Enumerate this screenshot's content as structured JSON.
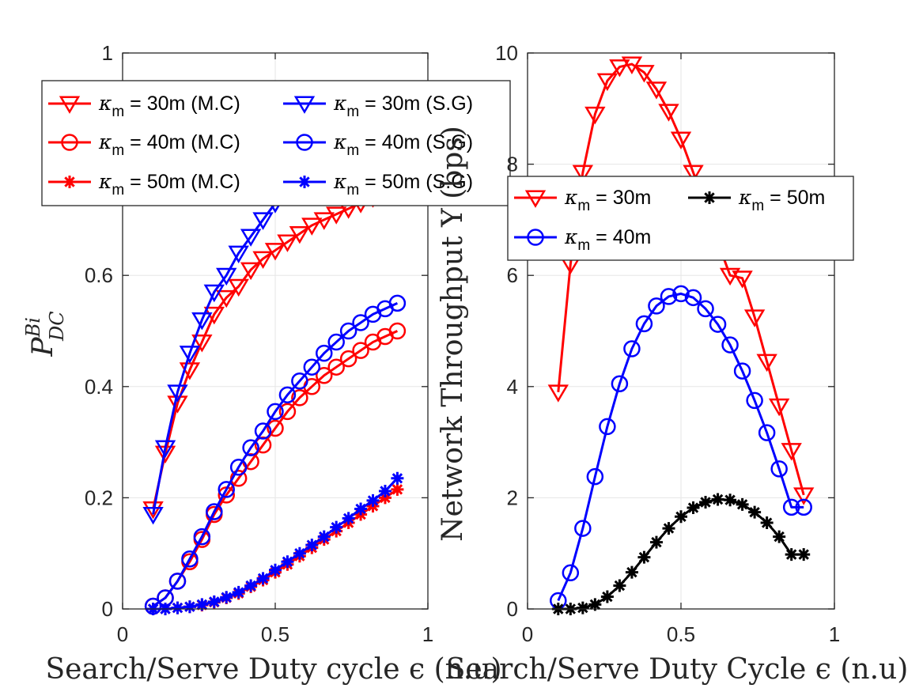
{
  "chart_data": [
    {
      "type": "line",
      "xlabel": "Search/Serve Duty cycle ϵ (n.u)",
      "ylabel": "P",
      "ylabel_sup": "Bi",
      "ylabel_sub": "DC",
      "xlim": [
        0,
        1
      ],
      "ylim": [
        0,
        1
      ],
      "xticks": [
        0,
        0.5,
        1
      ],
      "xtick_labels": [
        "0",
        "0.5",
        "1"
      ],
      "yticks": [
        0,
        0.2,
        0.4,
        0.6,
        0.8,
        1
      ],
      "ytick_labels": [
        "0",
        "0.2",
        "0.4",
        "0.6",
        "0.8",
        "1"
      ],
      "grid": true,
      "legend": {
        "placement": "top",
        "columns": 2
      },
      "x": [
        0.1,
        0.14,
        0.18,
        0.22,
        0.26,
        0.3,
        0.34,
        0.38,
        0.42,
        0.46,
        0.5,
        0.54,
        0.58,
        0.62,
        0.66,
        0.7,
        0.74,
        0.78,
        0.82,
        0.86,
        0.9
      ],
      "series": [
        {
          "name": "κm = 30m (M.C)",
          "name_main": "κ",
          "name_sub": "m",
          "name_rest": " = 30m (M.C)",
          "color": "#ff0000",
          "marker": "triangle-down",
          "values": [
            0.18,
            0.28,
            0.37,
            0.43,
            0.48,
            0.53,
            0.56,
            0.58,
            0.61,
            0.63,
            0.645,
            0.66,
            0.675,
            0.69,
            0.7,
            0.71,
            0.72,
            0.73,
            0.74,
            0.75,
            0.76
          ]
        },
        {
          "name": "κm = 40m (M.C)",
          "name_main": "κ",
          "name_sub": "m",
          "name_rest": " = 40m (M.C)",
          "color": "#ff0000",
          "marker": "circle",
          "values": [
            0.005,
            0.02,
            0.05,
            0.085,
            0.125,
            0.17,
            0.205,
            0.235,
            0.265,
            0.295,
            0.325,
            0.355,
            0.38,
            0.4,
            0.42,
            0.435,
            0.45,
            0.465,
            0.48,
            0.49,
            0.5
          ]
        },
        {
          "name": "κm = 50m (M.C)",
          "name_main": "κ",
          "name_sub": "m",
          "name_rest": " = 50m (M.C)",
          "color": "#ff0000",
          "marker": "asterisk",
          "values": [
            0.0,
            0.0,
            0.002,
            0.004,
            0.007,
            0.012,
            0.02,
            0.028,
            0.04,
            0.052,
            0.066,
            0.08,
            0.095,
            0.11,
            0.125,
            0.14,
            0.155,
            0.17,
            0.185,
            0.2,
            0.215
          ]
        },
        {
          "name": "κm = 30m (S.G)",
          "name_main": "κ",
          "name_sub": "m",
          "name_rest": " = 30m (S.G)",
          "color": "#0000ff",
          "marker": "triangle-down",
          "values": [
            0.17,
            0.29,
            0.39,
            0.46,
            0.52,
            0.57,
            0.6,
            0.64,
            0.67,
            0.7,
            0.73,
            0.75,
            0.77,
            0.79,
            0.81,
            0.82,
            0.83,
            0.84,
            0.85,
            0.86,
            0.87
          ]
        },
        {
          "name": "κm = 40m (S.G)",
          "name_main": "κ",
          "name_sub": "m",
          "name_rest": " = 40m (S.G)",
          "color": "#0000ff",
          "marker": "circle",
          "values": [
            0.005,
            0.02,
            0.05,
            0.09,
            0.13,
            0.175,
            0.215,
            0.255,
            0.29,
            0.32,
            0.355,
            0.385,
            0.41,
            0.435,
            0.46,
            0.48,
            0.5,
            0.515,
            0.53,
            0.54,
            0.55
          ]
        },
        {
          "name": "κm = 50m (S.G)",
          "name_main": "κ",
          "name_sub": "m",
          "name_rest": " = 50m (S.G)",
          "color": "#0000ff",
          "marker": "asterisk",
          "values": [
            0.0,
            0.0,
            0.002,
            0.004,
            0.008,
            0.013,
            0.021,
            0.03,
            0.042,
            0.055,
            0.07,
            0.085,
            0.1,
            0.115,
            0.13,
            0.147,
            0.163,
            0.18,
            0.195,
            0.212,
            0.235
          ]
        }
      ]
    },
    {
      "type": "line",
      "xlabel": "Search/Serve Duty Cycle ϵ (n.u)",
      "ylabel": "Network Throughput Υ (bps)",
      "xlim": [
        0,
        1
      ],
      "ylim": [
        0,
        10
      ],
      "xticks": [
        0,
        0.5,
        1
      ],
      "xtick_labels": [
        "0",
        "0.5",
        "1"
      ],
      "yticks": [
        0,
        2,
        4,
        6,
        8,
        10
      ],
      "ytick_labels": [
        "0",
        "2",
        "4",
        "6",
        "8",
        "10"
      ],
      "grid": true,
      "legend": {
        "placement": "top-right",
        "columns": 2
      },
      "x": [
        0.1,
        0.14,
        0.18,
        0.22,
        0.26,
        0.3,
        0.34,
        0.38,
        0.42,
        0.46,
        0.5,
        0.54,
        0.58,
        0.62,
        0.66,
        0.7,
        0.74,
        0.78,
        0.82,
        0.86,
        0.9
      ],
      "series": [
        {
          "name": "κm = 30m",
          "name_main": "κ",
          "name_sub": "m",
          "name_rest": " = 30m",
          "color": "#ff0000",
          "marker": "triangle-down",
          "values": [
            3.9,
            6.2,
            7.85,
            8.9,
            9.5,
            9.75,
            9.8,
            9.65,
            9.35,
            8.95,
            8.45,
            7.85,
            7.25,
            6.6,
            6.0,
            5.95,
            5.25,
            4.45,
            3.65,
            2.85,
            2.05
          ]
        },
        {
          "name": "κm = 40m",
          "name_main": "κ",
          "name_sub": "m",
          "name_rest": " = 40m",
          "color": "#0000ff",
          "marker": "circle",
          "values": [
            0.15,
            0.65,
            1.45,
            2.38,
            3.28,
            4.05,
            4.68,
            5.13,
            5.45,
            5.62,
            5.67,
            5.6,
            5.4,
            5.12,
            4.75,
            4.28,
            3.75,
            3.17,
            2.52,
            1.83,
            1.83
          ]
        },
        {
          "name": "κm = 50m",
          "name_main": "κ",
          "name_sub": "m",
          "name_rest": " = 50m",
          "color": "#000000",
          "marker": "asterisk",
          "values": [
            0.0,
            0.0,
            0.02,
            0.08,
            0.22,
            0.42,
            0.66,
            0.93,
            1.2,
            1.45,
            1.66,
            1.82,
            1.92,
            1.97,
            1.96,
            1.88,
            1.74,
            1.55,
            1.3,
            0.98,
            0.98
          ]
        }
      ]
    }
  ]
}
